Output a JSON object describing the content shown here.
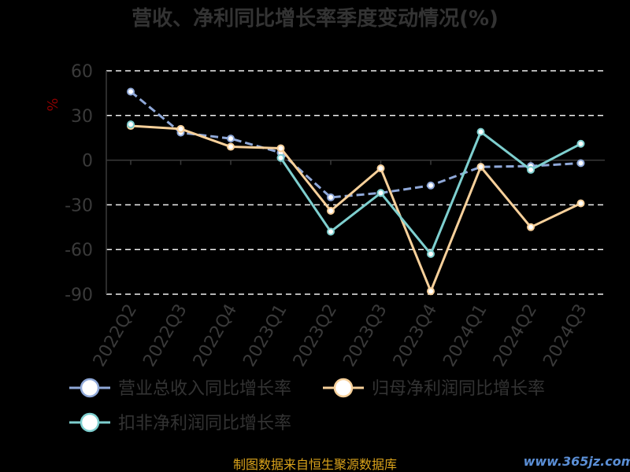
{
  "chart_data": {
    "type": "line",
    "title": "营收、净利同比增长率季度变动情况(%)",
    "ylabel": "%",
    "ylim": [
      -90,
      60
    ],
    "yticks": [
      60,
      30,
      0,
      -30,
      -60,
      -90
    ],
    "grid": true,
    "legend_position": "bottom",
    "categories": [
      "2022Q2",
      "2022Q3",
      "2022Q4",
      "2023Q1",
      "2023Q2",
      "2023Q3",
      "2023Q4",
      "2024Q1",
      "2024Q2",
      "2024Q3"
    ],
    "series": [
      {
        "name": "营业总收入同比增长率",
        "color": "#8fa8d8",
        "style": "dashed",
        "values": [
          46,
          18.5,
          14.5,
          5,
          -25,
          -22,
          -17,
          -4.5,
          -4,
          -2
        ]
      },
      {
        "name": "归母净利润同比增长率",
        "color": "#f7d09a",
        "style": "solid",
        "values": [
          23,
          21,
          9,
          8,
          -34,
          -5.5,
          -88,
          -4.5,
          -45,
          -29
        ]
      },
      {
        "name": "扣非净利润同比增长率",
        "color": "#7ecfcf",
        "style": "solid",
        "values": [
          24,
          null,
          null,
          1.5,
          -48,
          -22,
          -63,
          19,
          -6.5,
          11
        ]
      }
    ]
  },
  "footer": {
    "source": "制图数据来自恒生聚源数据库",
    "watermark": "www.365jz.com"
  }
}
